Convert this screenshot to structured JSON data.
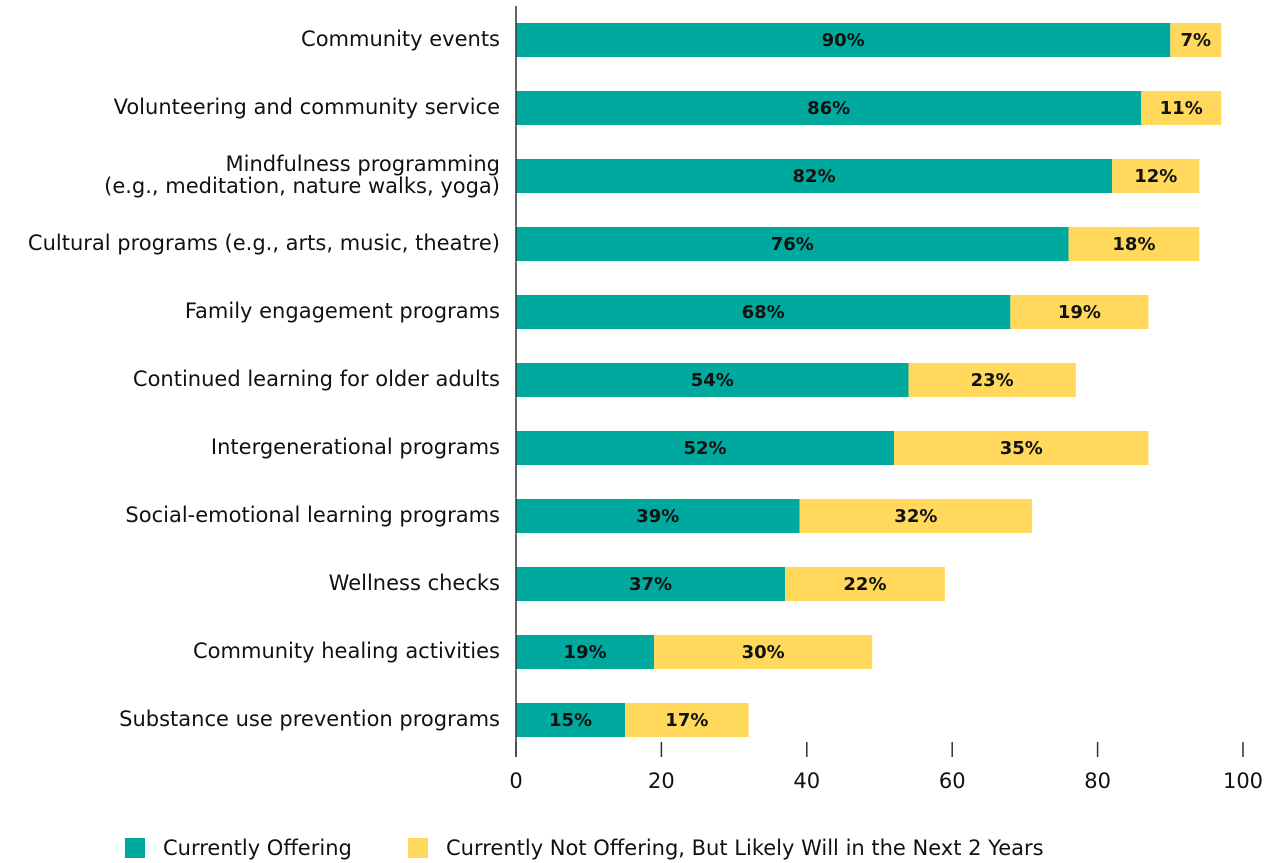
{
  "chart_data": {
    "type": "stacked_barh",
    "categories": [
      "Community events",
      "Volunteering and community service",
      "Mindfulness programming\n(e.g., meditation, nature walks, yoga)",
      "Cultural programs (e.g., arts, music, theatre)",
      "Family engagement programs",
      "Continued learning for older adults",
      "Intergenerational programs",
      "Social-emotional learning programs",
      "Wellness checks",
      "Community healing activities",
      "Substance use prevention programs"
    ],
    "series": [
      {
        "name": "Currently Offering",
        "color": "#00a99d",
        "values": [
          90,
          86,
          82,
          76,
          68,
          54,
          52,
          39,
          37,
          19,
          15
        ],
        "value_labels": [
          "90%",
          "86%",
          "82%",
          "76%",
          "68%",
          "54%",
          "52%",
          "39%",
          "37%",
          "19%",
          "15%"
        ]
      },
      {
        "name": "Currently Not Offering, But Likely Will in the Next 2 Years",
        "color": "#ffd85c",
        "values": [
          7,
          11,
          12,
          18,
          19,
          23,
          35,
          32,
          22,
          30,
          17
        ],
        "value_labels": [
          "7%",
          "11%",
          "12%",
          "18%",
          "19%",
          "23%",
          "35%",
          "32%",
          "22%",
          "30%",
          "17%"
        ]
      }
    ],
    "xlim": [
      0,
      100
    ],
    "xticks": [
      0,
      20,
      40,
      60,
      80,
      100
    ],
    "legend": "bottom"
  }
}
